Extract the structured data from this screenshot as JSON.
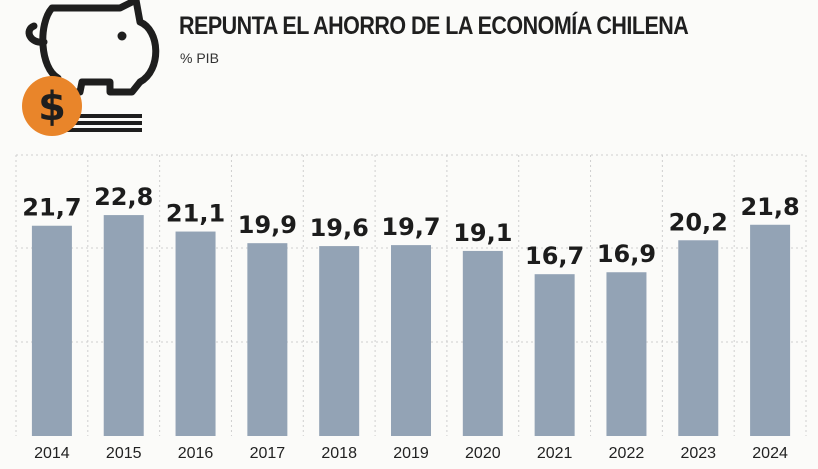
{
  "header": {
    "title": "REPUNTA EL AHORRO DE LA ECONOMÍA CHILENA",
    "subtitle": "% PIB",
    "logo_icon": "piggy-bank-dollar-coin-icon",
    "logo_symbol": "$"
  },
  "chart_data": {
    "type": "bar",
    "title": "REPUNTA EL AHORRO DE LA ECONOMÍA CHILENA",
    "subtitle": "% PIB",
    "xlabel": "",
    "ylabel": "",
    "categories": [
      "2014",
      "2015",
      "2016",
      "2017",
      "2018",
      "2019",
      "2020",
      "2021",
      "2022",
      "2023",
      "2024"
    ],
    "values": [
      21.7,
      22.8,
      21.1,
      19.9,
      19.6,
      19.7,
      19.1,
      16.7,
      16.9,
      20.2,
      21.8
    ],
    "value_labels": [
      "21,7",
      "22,8",
      "21,1",
      "19,9",
      "19,6",
      "19,7",
      "19,1",
      "16,7",
      "16,9",
      "20,2",
      "21,8"
    ],
    "ylim": [
      0,
      29
    ],
    "grid": true,
    "legend": "none",
    "bar_color": "#93a3b5",
    "label_color": "#1c1c1c",
    "logo_accent": "#e9852a"
  }
}
